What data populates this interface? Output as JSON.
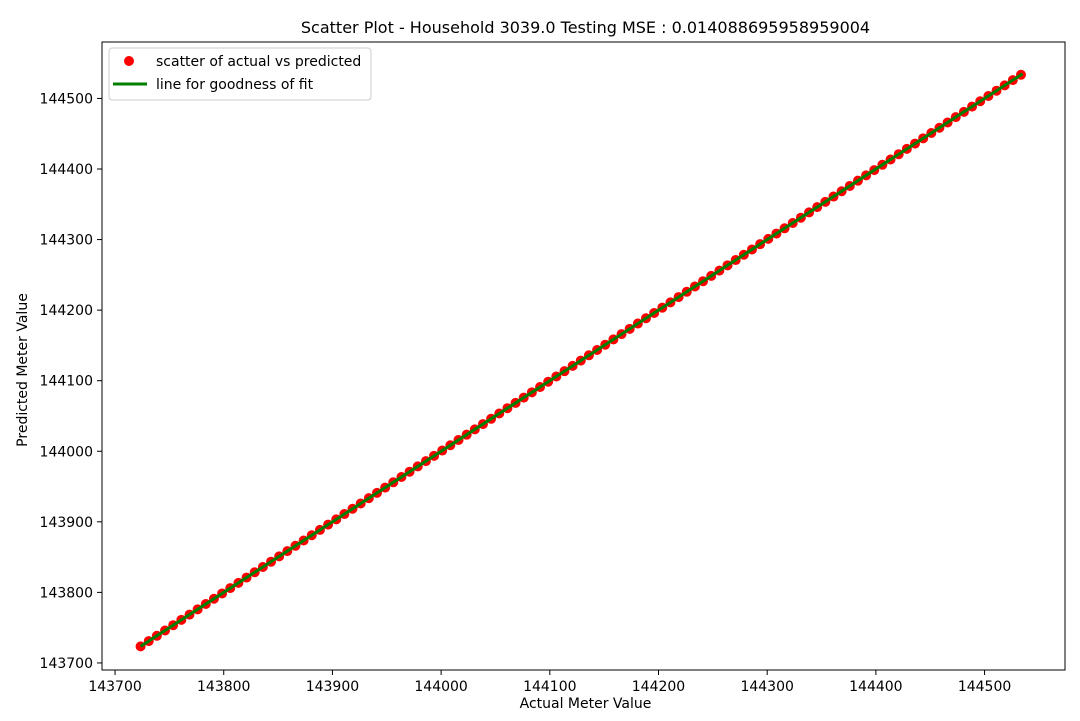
{
  "chart_data": {
    "type": "scatter",
    "title": "Scatter Plot - Household 3039.0 Testing MSE : 0.014088695958959004",
    "xlabel": "Actual Meter Value",
    "ylabel": "Predicted Meter Value",
    "xlim": [
      143688,
      144574
    ],
    "ylim": [
      143690,
      144580
    ],
    "xticks": [
      143700,
      143800,
      143900,
      144000,
      144100,
      144200,
      144300,
      144400,
      144500
    ],
    "yticks": [
      143700,
      143800,
      143900,
      144000,
      144100,
      144200,
      144300,
      144400,
      144500
    ],
    "grid": false,
    "legend_position": "top-left",
    "series": [
      {
        "name": "scatter of actual vs predicted",
        "kind": "scatter",
        "color": "#ff0000",
        "range": [
          143723.5,
          144535
        ],
        "step": 7.5
      },
      {
        "name": "line for goodness of fit",
        "kind": "line",
        "color": "#008000",
        "x": [
          143723.5,
          144535
        ],
        "y": [
          143723.5,
          144535
        ]
      }
    ]
  }
}
